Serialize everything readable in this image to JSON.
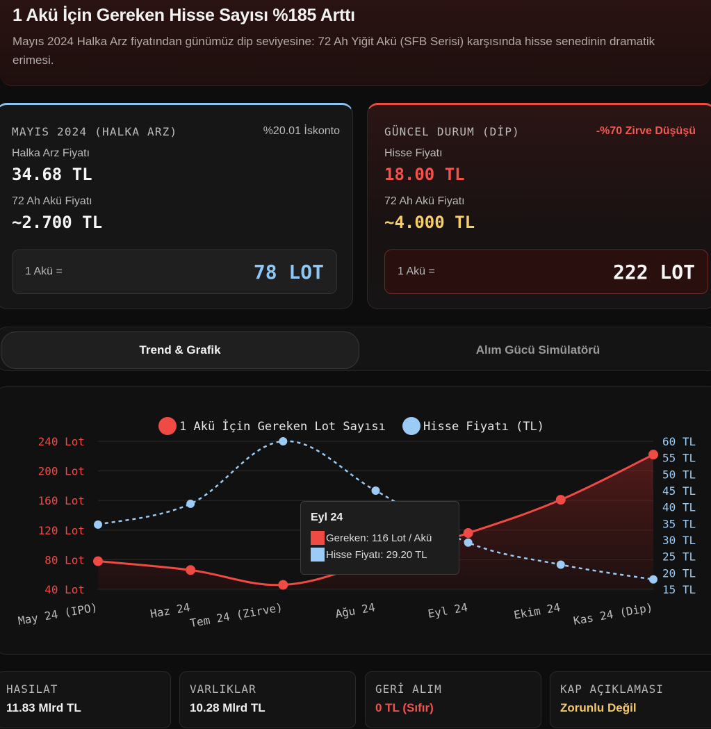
{
  "header": {
    "title": "1 Akü İçin Gereken Hisse Sayısı %185 Arttı",
    "subtitle": "Mayıs 2024 Halka Arz fiyatından günümüz dip seviyesine: 72 Ah Yiğit Akü (SFB Serisi) karşısında hisse senedinin dramatik erimesi."
  },
  "cards": {
    "ipo": {
      "caption": "MAYIS 2024 (HALKA ARZ)",
      "note": "%20.01 İskonto",
      "price_label": "Halka Arz Fiyatı",
      "price_value": "34.68 TL",
      "battery_label": "72 Ah Akü Fiyatı",
      "battery_value": "~2.700 TL",
      "lot_label": "1 Akü =",
      "lot_value": "78 LOT",
      "accent": "#8cc3f2"
    },
    "current": {
      "caption": "GÜNCEL DURUM (DİP)",
      "note": "-%70 Zirve Düşüşü",
      "price_label": "Hisse Fiyatı",
      "price_value": "18.00 TL",
      "battery_label": "72 Ah Akü Fiyatı",
      "battery_value": "~4.000 TL",
      "lot_label": "1 Akü =",
      "lot_value": "222 LOT",
      "accent": "#ef4a44"
    }
  },
  "tabs": [
    {
      "label": "Trend & Grafik",
      "active": true
    },
    {
      "label": "Alım Gücü Simülatörü",
      "active": false
    }
  ],
  "chart_data": {
    "type": "line",
    "categories": [
      "May 24 (IPO)",
      "Haz 24",
      "Tem 24 (Zirve)",
      "Ağu 24",
      "Eyl 24",
      "Ekim 24",
      "Kas 24 (Dip)"
    ],
    "series": [
      {
        "name": "1 Akü İçin Gereken Lot Sayısı",
        "axis": "left",
        "color": "#ef4a44",
        "values": [
          78,
          66,
          46,
          78,
          116,
          161,
          222
        ]
      },
      {
        "name": "Hisse Fiyatı (TL)",
        "axis": "right",
        "color": "#9ccbf5",
        "values": [
          34.68,
          41,
          60,
          45,
          29.2,
          22.5,
          18
        ]
      }
    ],
    "left_axis": {
      "min": 40,
      "max": 240,
      "ticks": [
        240,
        200,
        160,
        120,
        80,
        40
      ],
      "tick_labels": [
        "240 Lot",
        "200 Lot",
        "160 Lot",
        "120 Lot",
        "80 Lot",
        "40 Lot"
      ]
    },
    "right_axis": {
      "min": 15,
      "max": 60,
      "ticks": [
        60,
        55,
        50,
        45,
        40,
        35,
        30,
        25,
        20,
        15
      ],
      "tick_labels": [
        "60 TL",
        "55 TL",
        "50 TL",
        "45 TL",
        "40 TL",
        "35 TL",
        "30 TL",
        "25 TL",
        "20 TL",
        "15 TL"
      ]
    },
    "legend_position": "top-center",
    "grid": true,
    "tooltip": {
      "title": "Eyl 24",
      "rows": [
        "Gereken: 116 Lot / Akü",
        "Hisse Fiyatı: 29.20 TL"
      ]
    }
  },
  "stats": [
    {
      "caption": "HASILAT",
      "value": "11.83 Mlrd TL",
      "tone": "normal"
    },
    {
      "caption": "VARLIKLAR",
      "value": "10.28 Mlrd TL",
      "tone": "normal"
    },
    {
      "caption": "GERİ ALIM",
      "value": "0 TL (Sıfır)",
      "tone": "red"
    },
    {
      "caption": "KAP AÇIKLAMASI",
      "value": "Zorunlu Değil",
      "tone": "gold"
    }
  ]
}
